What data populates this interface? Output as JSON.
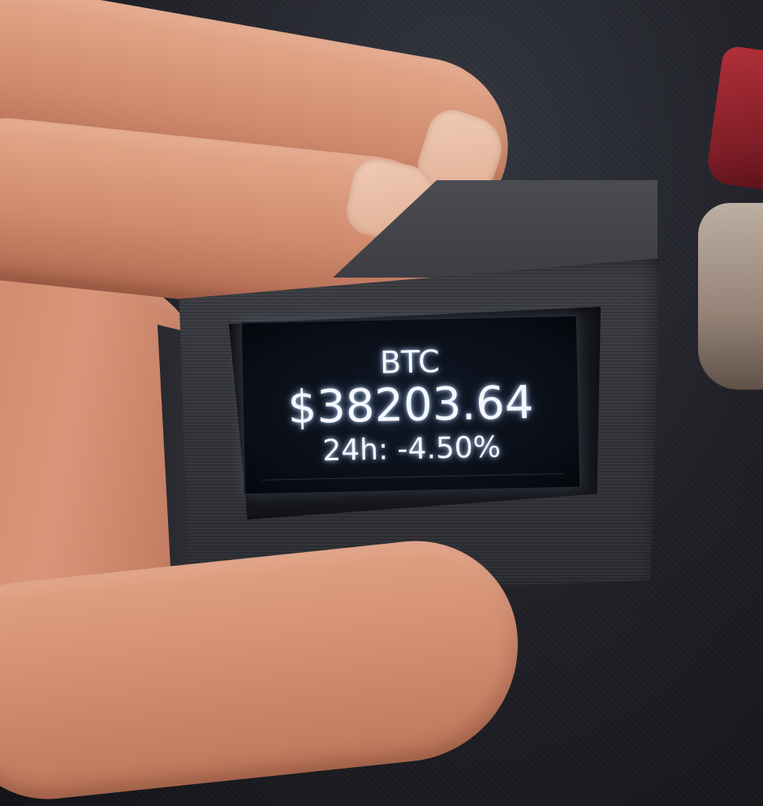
{
  "display": {
    "symbol": "BTC",
    "price": "$38203.64",
    "change": "24h: -4.50%"
  },
  "colors": {
    "screen_text": "#f4f7ff",
    "screen_bg": "#0a0e16",
    "case": "#35363b",
    "skin": "#d89275"
  }
}
